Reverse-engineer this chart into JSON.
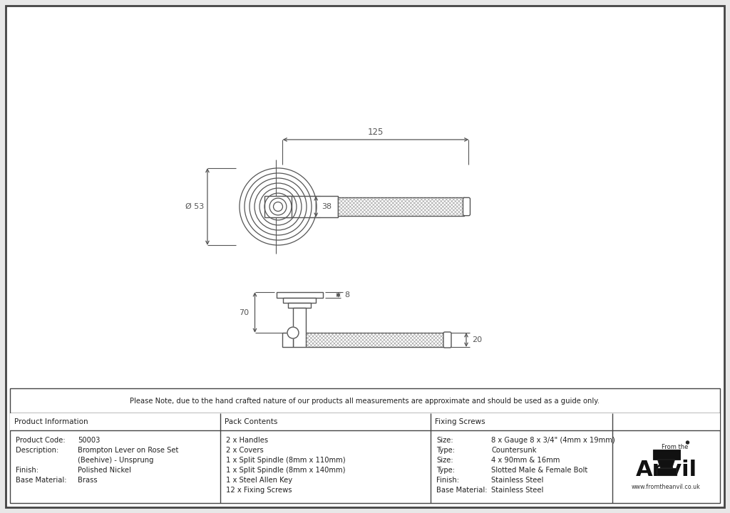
{
  "bg_color": "#e8e8e8",
  "border_color": "#555555",
  "line_color": "#555555",
  "dim_color": "#555555",
  "note_text": "Please Note, due to the hand crafted nature of our products all measurements are approximate and should be used as a guide only.",
  "product_info_title": "Product Information",
  "pack_contents_title": "Pack Contents",
  "fixing_screws_title": "Fixing Screws",
  "pack_contents": [
    "2 x Handles",
    "2 x Covers",
    "1 x Split Spindle (8mm x 110mm)",
    "1 x Split Spindle (8mm x 140mm)",
    "1 x Steel Allen Key",
    "12 x Fixing Screws"
  ],
  "fixing_screws": [
    [
      "Size:",
      "8 x Gauge 8 x 3/4\" (4mm x 19mm)"
    ],
    [
      "Type:",
      "Countersunk"
    ],
    [
      "Size:",
      "4 x 90mm & 16mm"
    ],
    [
      "Type:",
      "Slotted Male & Female Bolt"
    ],
    [
      "Finish:",
      "Stainless Steel"
    ],
    [
      "Base Material:",
      "Stainless Steel"
    ]
  ],
  "dim_125": "125",
  "dim_53": "Ø 53",
  "dim_38": "38",
  "dim_8": "8",
  "dim_70": "70",
  "dim_20": "20"
}
